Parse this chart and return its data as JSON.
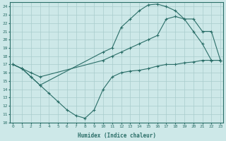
{
  "xlabel": "Humidex (Indice chaleur)",
  "bg_color": "#cde8e8",
  "grid_color": "#a8cccc",
  "line_color": "#2a6e68",
  "line1_x": [
    0,
    1,
    2,
    3,
    10,
    11,
    12,
    13,
    14,
    15,
    16,
    17,
    18,
    19,
    20,
    21,
    22,
    23
  ],
  "line1_y": [
    17.0,
    16.5,
    15.5,
    14.5,
    18.5,
    19.0,
    21.5,
    22.5,
    23.5,
    24.2,
    24.3,
    24.0,
    23.5,
    22.5,
    21.0,
    19.5,
    17.5,
    17.5
  ],
  "line2_x": [
    0,
    1,
    2,
    3,
    10,
    11,
    12,
    13,
    14,
    15,
    16,
    17,
    18,
    19,
    20,
    21,
    22,
    23
  ],
  "line2_y": [
    17.0,
    16.5,
    16.0,
    15.5,
    17.5,
    18.0,
    18.5,
    19.0,
    19.5,
    20.0,
    20.5,
    22.5,
    22.8,
    22.5,
    22.5,
    21.0,
    21.0,
    17.5
  ],
  "line3_x": [
    0,
    1,
    2,
    3,
    4,
    5,
    6,
    7,
    8,
    9,
    10,
    11,
    12,
    13,
    14,
    15,
    16,
    17,
    18,
    19,
    20,
    21,
    22,
    23
  ],
  "line3_y": [
    17.0,
    16.5,
    15.5,
    14.5,
    13.5,
    12.5,
    11.5,
    10.8,
    10.5,
    11.5,
    14.0,
    15.5,
    16.0,
    16.2,
    16.3,
    16.5,
    16.8,
    17.0,
    17.0,
    17.2,
    17.3,
    17.5,
    17.5,
    17.5
  ],
  "xlim": [
    -0.3,
    23.3
  ],
  "ylim": [
    10,
    24.5
  ],
  "yticks": [
    10,
    11,
    12,
    13,
    14,
    15,
    16,
    17,
    18,
    19,
    20,
    21,
    22,
    23,
    24
  ],
  "xticks": [
    0,
    1,
    2,
    3,
    4,
    5,
    6,
    7,
    8,
    9,
    10,
    11,
    12,
    13,
    14,
    15,
    16,
    17,
    18,
    19,
    20,
    21,
    22,
    23
  ]
}
